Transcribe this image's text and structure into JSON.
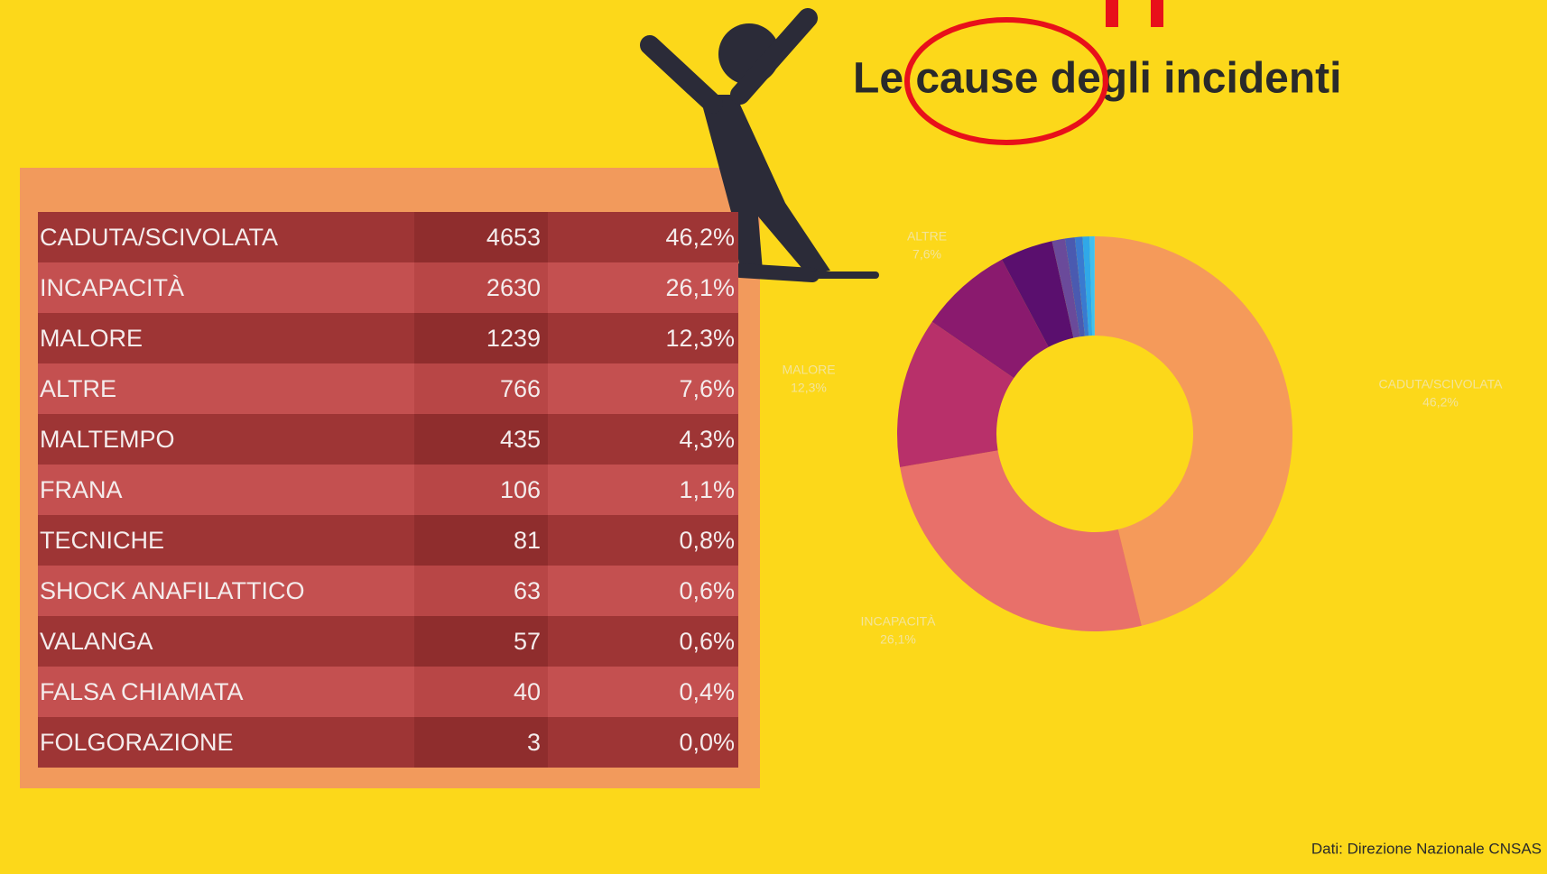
{
  "title": "Le cause degli incidenti",
  "table": {
    "rows": [
      [
        "CADUTA/SCIVOLATA",
        4653,
        "46,2%"
      ],
      [
        "INCAPACITÀ",
        2630,
        "26,1%"
      ],
      [
        "MALORE",
        1239,
        "12,3%"
      ],
      [
        "ALTRE",
        766,
        "7,6%"
      ],
      [
        "MALTEMPO",
        435,
        "4,3%"
      ],
      [
        "FRANA",
        106,
        "1,1%"
      ],
      [
        "TECNICHE",
        81,
        "0,8%"
      ],
      [
        "SHOCK ANAFILATTICO",
        63,
        "0,6%"
      ],
      [
        "VALANGA",
        57,
        "0,6%"
      ],
      [
        "FALSA CHIAMATA",
        40,
        "0,4%"
      ],
      [
        "FOLGORAZIONE",
        3,
        "0,0%"
      ]
    ]
  },
  "donut": {
    "colors": [
      "#f59a5a",
      "#e8706a",
      "#b8306a",
      "#8a1a6e",
      "#5a0f6e",
      "#6a4a9a",
      "#4a5ab0",
      "#3a7ad0",
      "#30a8e8",
      "#40c0f0",
      "#50d0ff"
    ],
    "labels": [
      [
        "CADUTA/SCIVOLATA",
        "46,2%"
      ],
      [
        "INCAPACITÀ",
        "26,1%"
      ],
      [
        "MALORE",
        "12,3%"
      ],
      [
        "ALTRE",
        "7,6%"
      ]
    ]
  },
  "source": "Dati: Direzione Nazionale CNSAS"
}
